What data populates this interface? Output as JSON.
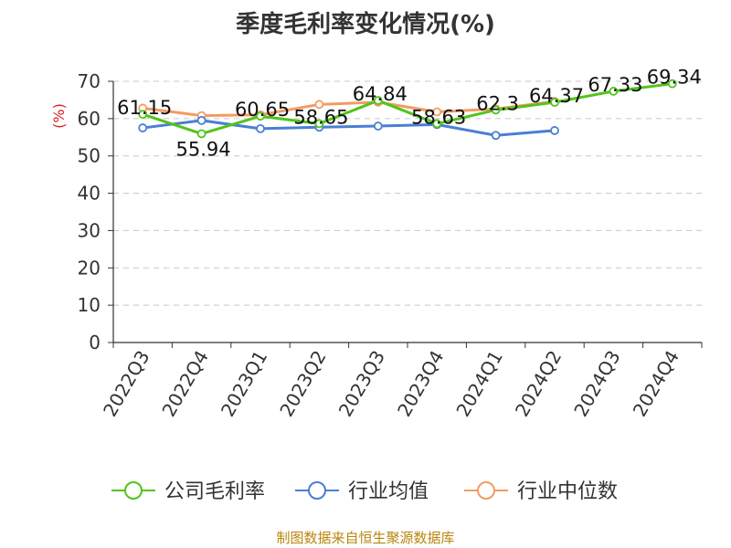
{
  "chart_data": {
    "type": "line",
    "title": "季度毛利率变化情况(%)",
    "ylabel": "(%)",
    "xlabel": "",
    "ylim": [
      0,
      70
    ],
    "yticks": [
      0,
      10,
      20,
      30,
      40,
      50,
      60,
      70
    ],
    "grid": true,
    "legend_position": "bottom",
    "categories": [
      "2022Q3",
      "2022Q4",
      "2023Q1",
      "2023Q2",
      "2023Q3",
      "2023Q4",
      "2024Q1",
      "2024Q2",
      "2024Q3",
      "2024Q4"
    ],
    "series": [
      {
        "name": "公司毛利率",
        "color": "#52c41a",
        "values": [
          61.15,
          55.94,
          60.65,
          58.65,
          64.84,
          58.63,
          62.3,
          64.37,
          67.33,
          69.34
        ],
        "labels": [
          "61.15",
          "55.94",
          "60.65",
          "58.65",
          "64.84",
          "58.63",
          "62.3",
          "64.37",
          "67.33",
          "69.34"
        ]
      },
      {
        "name": "行业均值",
        "color": "#4a7fd4",
        "values": [
          57.5,
          59.5,
          57.3,
          57.7,
          58.0,
          58.4,
          55.5,
          56.8,
          null,
          null
        ]
      },
      {
        "name": "行业中位数",
        "color": "#f39c62",
        "values": [
          62.8,
          60.8,
          61.0,
          63.8,
          64.4,
          61.8,
          62.6,
          64.6,
          null,
          null
        ]
      }
    ]
  },
  "source": "制图数据来自恒生聚源数据库"
}
